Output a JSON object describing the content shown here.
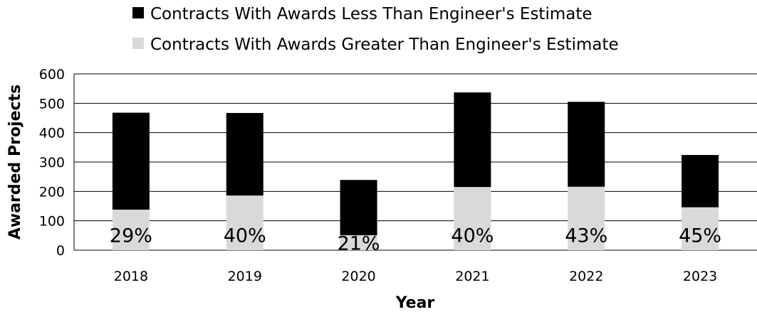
{
  "chart_data": {
    "type": "bar",
    "stacked": true,
    "categories": [
      "2018",
      "2019",
      "2020",
      "2021",
      "2022",
      "2023"
    ],
    "series": [
      {
        "name": "Contracts With Awards Greater Than Engineer's Estimate",
        "color": "#d9d9d9",
        "values": [
          138,
          186,
          51,
          215,
          216,
          146
        ]
      },
      {
        "name": "Contracts With Awards Less Than Engineer's Estimate",
        "color": "#000000",
        "values": [
          330,
          281,
          188,
          322,
          289,
          178
        ]
      }
    ],
    "data_labels": [
      "29%",
      "40%",
      "21%",
      "40%",
      "43%",
      "45%"
    ],
    "xlabel": "Year",
    "ylabel": "Awarded Projects",
    "ylim": [
      0,
      600
    ],
    "yticks": [
      0,
      100,
      200,
      300,
      400,
      500,
      600
    ],
    "grid": true,
    "legend_position": "top"
  }
}
